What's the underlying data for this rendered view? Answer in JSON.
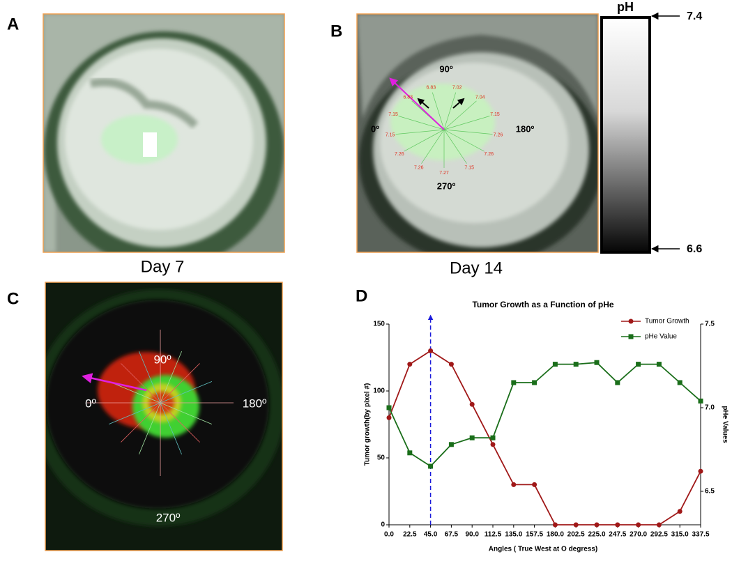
{
  "panels": {
    "a": {
      "label": "A",
      "caption": "Day 7"
    },
    "b": {
      "label": "B",
      "caption": "Day 14",
      "angles": [
        "90º",
        "0º",
        "180º",
        "270º"
      ],
      "ph_readings": [
        "6.83",
        "6.83",
        "7.15",
        "7.15",
        "7.26",
        "7.26",
        "7.27",
        "7.15",
        "7.26",
        "7.26",
        "7.15",
        "7.04",
        "7.02"
      ],
      "colorbar": {
        "title": "pH",
        "top": "7.4",
        "bottom": "6.6"
      }
    },
    "c": {
      "label": "C",
      "angles": [
        "90º",
        "0º",
        "180º",
        "270º"
      ]
    },
    "d": {
      "label": "D"
    }
  },
  "chart_data": {
    "type": "line",
    "title": "Tumor Growth as a Function of pHe",
    "x_label": "Angles ( True West at O degress)",
    "y_label": "Tumor growth(by pixel #)",
    "y2_label": "pHe Values",
    "categories": [
      "0.0",
      "22.5",
      "45.0",
      "67.5",
      "90.0",
      "112.5",
      "135.0",
      "157.5",
      "180.0",
      "202.5",
      "225.0",
      "247.5",
      "270.0",
      "292.5",
      "315.0",
      "337.5"
    ],
    "series": [
      {
        "name": "Tumor Growth",
        "color": "#a01818",
        "marker": "circle",
        "values": [
          80,
          120,
          130,
          120,
          90,
          60,
          30,
          30,
          0,
          0,
          0,
          0,
          0,
          0,
          10,
          40
        ]
      },
      {
        "name": "pHe Value",
        "color": "#1a6e1a",
        "marker": "square",
        "axis": "y2",
        "values": [
          7.0,
          6.73,
          6.65,
          6.78,
          6.82,
          6.82,
          7.15,
          7.15,
          7.26,
          7.26,
          7.27,
          7.15,
          7.26,
          7.26,
          7.15,
          7.04
        ]
      }
    ],
    "ylim": [
      0,
      150
    ],
    "yticks": [
      0,
      50,
      100,
      150
    ],
    "y2lim": [
      6.3,
      7.5
    ],
    "y2ticks": [
      6.5,
      {
        "value": 7.0,
        "label": "7.0"
      },
      {
        "value": 7.5,
        "label": "7.5"
      }
    ],
    "highlight": {
      "category_index": 2,
      "color": "#1a1adb"
    },
    "legend": "top-right"
  }
}
